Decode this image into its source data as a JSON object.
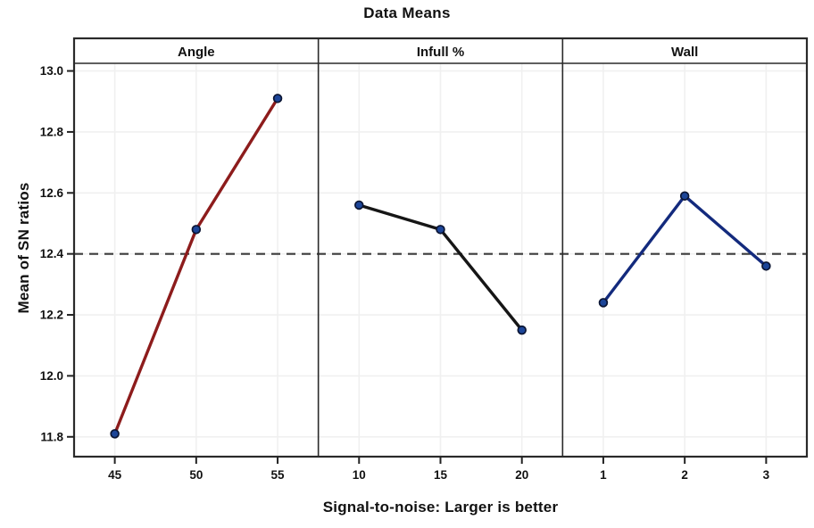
{
  "figure": {
    "background": "#ffffff"
  },
  "chart_data": {
    "type": "line",
    "title": "Data Means",
    "xlabel": "Signal-to-noise: Larger is better",
    "ylabel": "Mean of SN ratios",
    "ylim": [
      11.735,
      13.025
    ],
    "yticks": [
      {
        "v": 13.0,
        "label": "13.0"
      },
      {
        "v": 12.8,
        "label": "12.8"
      },
      {
        "v": 12.6,
        "label": "12.6"
      },
      {
        "v": 12.4,
        "label": "12.4"
      },
      {
        "v": 12.2,
        "label": "12.2"
      },
      {
        "v": 12.0,
        "label": "12.0"
      },
      {
        "v": 11.8,
        "label": "11.8"
      }
    ],
    "grid": true,
    "grid_color": "#f0f0f0",
    "frame_color": "#2a2a2a",
    "tick_color": "#222222",
    "text_color": "#111111",
    "reference_line": {
      "value": 12.4,
      "style": "dashed",
      "color": "#3c3c3c"
    },
    "marker": {
      "shape": "circle",
      "fill": "#1c4598",
      "stroke": "#0b1533"
    },
    "panels": [
      {
        "label": "Angle",
        "categories": [
          "45",
          "50",
          "55"
        ],
        "values": [
          11.81,
          12.48,
          12.91
        ],
        "line_color": "#8d1c1c"
      },
      {
        "label": "Infull %",
        "categories": [
          "10",
          "15",
          "20"
        ],
        "values": [
          12.56,
          12.48,
          12.15
        ],
        "line_color": "#161616"
      },
      {
        "label": "Wall",
        "categories": [
          "1",
          "2",
          "3"
        ],
        "values": [
          12.24,
          12.59,
          12.36
        ],
        "line_color": "#132a7d"
      }
    ]
  }
}
